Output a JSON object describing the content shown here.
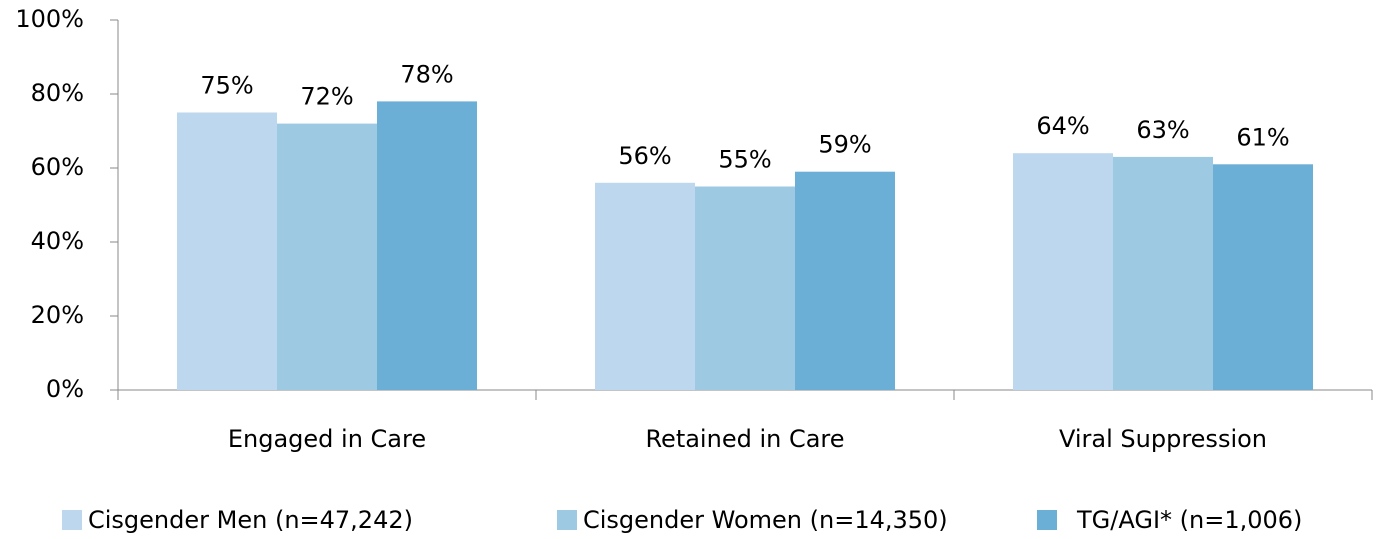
{
  "chart_data": {
    "type": "bar",
    "categories": [
      "Engaged in Care",
      "Retained in Care",
      "Viral Suppression"
    ],
    "series": [
      {
        "name": "Cisgender Men (n=47,242)",
        "color": "#bdd7ee",
        "values": [
          75,
          56,
          64
        ],
        "value_labels": [
          "75%",
          "56%",
          "64%"
        ]
      },
      {
        "name": "Cisgender Women (n=14,350)",
        "color": "#9dc9e2",
        "values": [
          72,
          55,
          63
        ],
        "value_labels": [
          "72%",
          "55%",
          "63%"
        ]
      },
      {
        "name": "TG/AGI* (n=1,006)",
        "color": "#6baed6",
        "values": [
          78,
          59,
          61
        ],
        "value_labels": [
          "78%",
          "59%",
          "61%"
        ]
      }
    ],
    "ylim": [
      0,
      100
    ],
    "yticks": [
      {
        "value": 0,
        "label": "0%"
      },
      {
        "value": 20,
        "label": "20%"
      },
      {
        "value": 40,
        "label": "40%"
      },
      {
        "value": 60,
        "label": "60%"
      },
      {
        "value": 80,
        "label": "80%"
      },
      {
        "value": 100,
        "label": "100%"
      }
    ],
    "grid": false,
    "legend": "bottom"
  }
}
